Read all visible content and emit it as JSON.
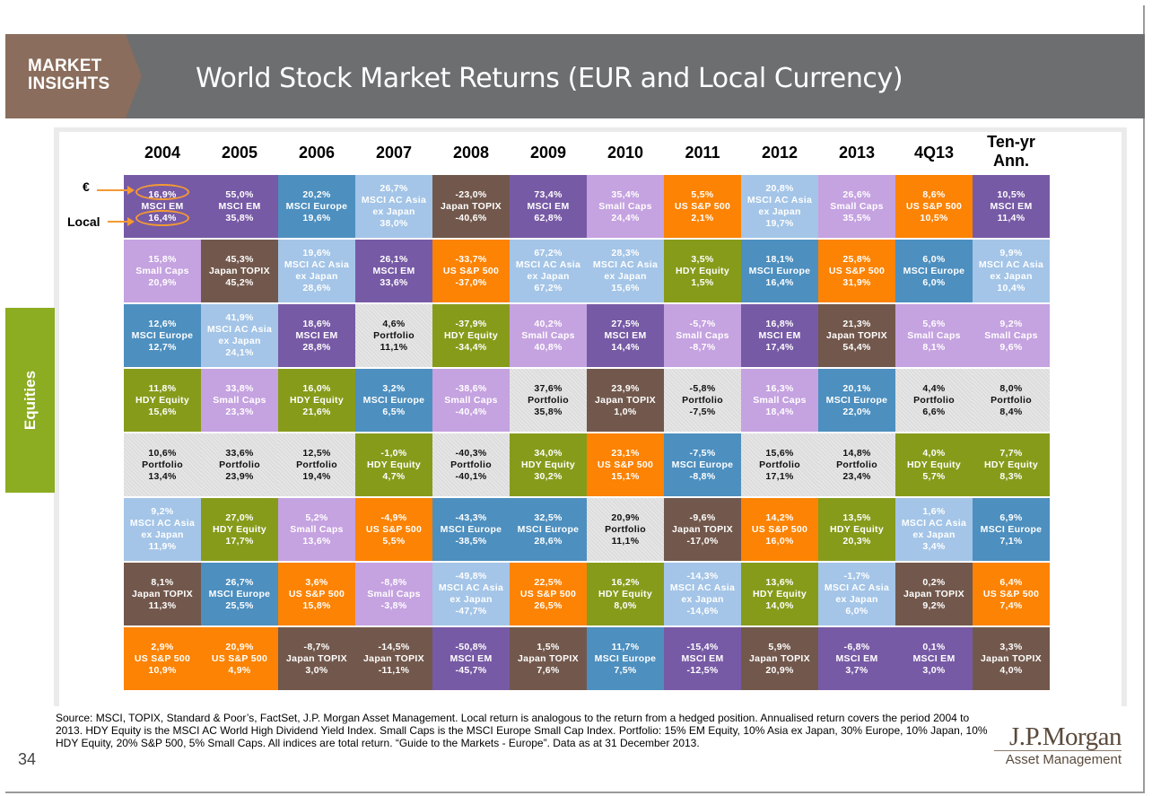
{
  "header": {
    "badge_line1": "MARKET",
    "badge_line2": "INSIGHTS",
    "title": "World Stock Market Returns (EUR and Local Currency)"
  },
  "side_tab": "Equities",
  "legend": {
    "euro": "€",
    "local": "Local"
  },
  "colors": {
    "purple": "#775aa5",
    "lavender": "#c5a2e0",
    "blue": "#4d8fbf",
    "lightblue": "#a4c5e7",
    "brown": "#72584c",
    "orange": "#fc8303",
    "olive": "#879b1b",
    "grey": "#dddddd",
    "header": "#6d6e70",
    "equities": "#8cac22",
    "legend_ring": "#f39a33"
  },
  "chart_data": {
    "type": "table",
    "columns": [
      "2004",
      "2005",
      "2006",
      "2007",
      "2008",
      "2009",
      "2010",
      "2011",
      "2012",
      "2013",
      "4Q13",
      "Ten-yr Ann."
    ],
    "rows": [
      [
        {
          "eur": "16,9%",
          "name": "MSCI EM",
          "local": "16,4%",
          "color": "purple"
        },
        {
          "eur": "55,0%",
          "name": "MSCI EM",
          "local": "35,8%",
          "color": "purple"
        },
        {
          "eur": "20,2%",
          "name": "MSCI Europe",
          "local": "19,6%",
          "color": "blue"
        },
        {
          "eur": "26,7%",
          "name": "MSCI AC Asia ex Japan",
          "local": "38,0%",
          "color": "lightblue"
        },
        {
          "eur": "-23,0%",
          "name": "Japan TOPIX",
          "local": "-40,6%",
          "color": "brown"
        },
        {
          "eur": "73,4%",
          "name": "MSCI EM",
          "local": "62,8%",
          "color": "purple"
        },
        {
          "eur": "35,4%",
          "name": "Small Caps",
          "local": "24,4%",
          "color": "lavender"
        },
        {
          "eur": "5,5%",
          "name": "US S&P 500",
          "local": "2,1%",
          "color": "orange"
        },
        {
          "eur": "20,8%",
          "name": "MSCI AC Asia ex Japan",
          "local": "19,7%",
          "color": "lightblue"
        },
        {
          "eur": "26,6%",
          "name": "Small Caps",
          "local": "35,5%",
          "color": "lavender"
        },
        {
          "eur": "8,6%",
          "name": "US S&P 500",
          "local": "10,5%",
          "color": "orange"
        },
        {
          "eur": "10,5%",
          "name": "MSCI EM",
          "local": "11,4%",
          "color": "purple"
        }
      ],
      [
        {
          "eur": "15,8%",
          "name": "Small Caps",
          "local": "20,9%",
          "color": "lavender"
        },
        {
          "eur": "45,3%",
          "name": "Japan TOPIX",
          "local": "45,2%",
          "color": "brown"
        },
        {
          "eur": "19,6%",
          "name": "MSCI AC Asia ex Japan",
          "local": "28,6%",
          "color": "lightblue"
        },
        {
          "eur": "26,1%",
          "name": "MSCI EM",
          "local": "33,6%",
          "color": "purple"
        },
        {
          "eur": "-33,7%",
          "name": "US S&P 500",
          "local": "-37,0%",
          "color": "orange"
        },
        {
          "eur": "67,2%",
          "name": "MSCI AC Asia ex Japan",
          "local": "67,2%",
          "color": "lightblue"
        },
        {
          "eur": "28,3%",
          "name": "MSCI AC Asia ex Japan",
          "local": "15,6%",
          "color": "lightblue"
        },
        {
          "eur": "3,5%",
          "name": "HDY Equity",
          "local": "1,5%",
          "color": "olive"
        },
        {
          "eur": "18,1%",
          "name": "MSCI Europe",
          "local": "16,4%",
          "color": "blue"
        },
        {
          "eur": "25,8%",
          "name": "US S&P 500",
          "local": "31,9%",
          "color": "orange"
        },
        {
          "eur": "6,0%",
          "name": "MSCI Europe",
          "local": "6,0%",
          "color": "blue"
        },
        {
          "eur": "9,9%",
          "name": "MSCI AC Asia ex Japan",
          "local": "10,4%",
          "color": "lightblue"
        }
      ],
      [
        {
          "eur": "12,6%",
          "name": "MSCI Europe",
          "local": "12,7%",
          "color": "blue"
        },
        {
          "eur": "41,9%",
          "name": "MSCI AC Asia ex Japan",
          "local": "24,1%",
          "color": "lightblue"
        },
        {
          "eur": "18,6%",
          "name": "MSCI EM",
          "local": "28,8%",
          "color": "purple"
        },
        {
          "eur": "4,6%",
          "name": "Portfolio",
          "local": "11,1%",
          "color": "grey"
        },
        {
          "eur": "-37,9%",
          "name": "HDY Equity",
          "local": "-34,4%",
          "color": "olive"
        },
        {
          "eur": "40,2%",
          "name": "Small Caps",
          "local": "40,8%",
          "color": "lavender"
        },
        {
          "eur": "27,5%",
          "name": "MSCI EM",
          "local": "14,4%",
          "color": "purple"
        },
        {
          "eur": "-5,7%",
          "name": "Small Caps",
          "local": "-8,7%",
          "color": "lavender"
        },
        {
          "eur": "16,8%",
          "name": "MSCI EM",
          "local": "17,4%",
          "color": "purple"
        },
        {
          "eur": "21,3%",
          "name": "Japan TOPIX",
          "local": "54,4%",
          "color": "brown"
        },
        {
          "eur": "5,6%",
          "name": "Small Caps",
          "local": "8,1%",
          "color": "lavender"
        },
        {
          "eur": "9,2%",
          "name": "Small Caps",
          "local": "9,6%",
          "color": "lavender"
        }
      ],
      [
        {
          "eur": "11,8%",
          "name": "HDY Equity",
          "local": "15,6%",
          "color": "olive"
        },
        {
          "eur": "33,8%",
          "name": "Small Caps",
          "local": "23,3%",
          "color": "lavender"
        },
        {
          "eur": "16,0%",
          "name": "HDY Equity",
          "local": "21,6%",
          "color": "olive"
        },
        {
          "eur": "3,2%",
          "name": "MSCI Europe",
          "local": "6,5%",
          "color": "blue"
        },
        {
          "eur": "-38,6%",
          "name": "Small Caps",
          "local": "-40,4%",
          "color": "lavender"
        },
        {
          "eur": "37,6%",
          "name": "Portfolio",
          "local": "35,8%",
          "color": "grey"
        },
        {
          "eur": "23,9%",
          "name": "Japan TOPIX",
          "local": "1,0%",
          "color": "brown"
        },
        {
          "eur": "-5,8%",
          "name": "Portfolio",
          "local": "-7,5%",
          "color": "grey"
        },
        {
          "eur": "16,3%",
          "name": "Small Caps",
          "local": "18,4%",
          "color": "lavender"
        },
        {
          "eur": "20,1%",
          "name": "MSCI Europe",
          "local": "22,0%",
          "color": "blue"
        },
        {
          "eur": "4,4%",
          "name": "Portfolio",
          "local": "6,6%",
          "color": "grey"
        },
        {
          "eur": "8,0%",
          "name": "Portfolio",
          "local": "8,4%",
          "color": "grey"
        }
      ],
      [
        {
          "eur": "10,6%",
          "name": "Portfolio",
          "local": "13,4%",
          "color": "grey"
        },
        {
          "eur": "33,6%",
          "name": "Portfolio",
          "local": "23,9%",
          "color": "grey"
        },
        {
          "eur": "12,5%",
          "name": "Portfolio",
          "local": "19,4%",
          "color": "grey"
        },
        {
          "eur": "-1,0%",
          "name": "HDY Equity",
          "local": "4,7%",
          "color": "olive"
        },
        {
          "eur": "-40,3%",
          "name": "Portfolio",
          "local": "-40,1%",
          "color": "grey"
        },
        {
          "eur": "34,0%",
          "name": "HDY Equity",
          "local": "30,2%",
          "color": "olive"
        },
        {
          "eur": "23,1%",
          "name": "US S&P 500",
          "local": "15,1%",
          "color": "orange"
        },
        {
          "eur": "-7,5%",
          "name": "MSCI Europe",
          "local": "-8,8%",
          "color": "blue"
        },
        {
          "eur": "15,6%",
          "name": "Portfolio",
          "local": "17,1%",
          "color": "grey"
        },
        {
          "eur": "14,8%",
          "name": "Portfolio",
          "local": "23,4%",
          "color": "grey"
        },
        {
          "eur": "4,0%",
          "name": "HDY Equity",
          "local": "5,7%",
          "color": "olive"
        },
        {
          "eur": "7,7%",
          "name": "HDY Equity",
          "local": "8,3%",
          "color": "olive"
        }
      ],
      [
        {
          "eur": "9,2%",
          "name": "MSCI AC Asia ex Japan",
          "local": "11,9%",
          "color": "lightblue"
        },
        {
          "eur": "27,0%",
          "name": "HDY Equity",
          "local": "17,7%",
          "color": "olive"
        },
        {
          "eur": "5,2%",
          "name": "Small Caps",
          "local": "13,6%",
          "color": "lavender"
        },
        {
          "eur": "-4,9%",
          "name": "US S&P 500",
          "local": "5,5%",
          "color": "orange"
        },
        {
          "eur": "-43,3%",
          "name": "MSCI Europe",
          "local": "-38,5%",
          "color": "blue"
        },
        {
          "eur": "32,5%",
          "name": "MSCI Europe",
          "local": "28,6%",
          "color": "blue"
        },
        {
          "eur": "20,9%",
          "name": "Portfolio",
          "local": "11,1%",
          "color": "grey"
        },
        {
          "eur": "-9,6%",
          "name": "Japan TOPIX",
          "local": "-17,0%",
          "color": "brown"
        },
        {
          "eur": "14,2%",
          "name": "US S&P 500",
          "local": "16,0%",
          "color": "orange"
        },
        {
          "eur": "13,5%",
          "name": "HDY Equity",
          "local": "20,3%",
          "color": "olive"
        },
        {
          "eur": "1,6%",
          "name": "MSCI AC Asia ex Japan",
          "local": "3,4%",
          "color": "lightblue"
        },
        {
          "eur": "6,9%",
          "name": "MSCI Europe",
          "local": "7,1%",
          "color": "blue"
        }
      ],
      [
        {
          "eur": "8,1%",
          "name": "Japan TOPIX",
          "local": "11,3%",
          "color": "brown"
        },
        {
          "eur": "26,7%",
          "name": "MSCI Europe",
          "local": "25,5%",
          "color": "blue"
        },
        {
          "eur": "3,6%",
          "name": "US S&P 500",
          "local": "15,8%",
          "color": "orange"
        },
        {
          "eur": "-8,8%",
          "name": "Small Caps",
          "local": "-3,8%",
          "color": "lavender"
        },
        {
          "eur": "-49,8%",
          "name": "MSCI AC Asia ex Japan",
          "local": "-47,7%",
          "color": "lightblue"
        },
        {
          "eur": "22,5%",
          "name": "US S&P 500",
          "local": "26,5%",
          "color": "orange"
        },
        {
          "eur": "16,2%",
          "name": "HDY Equity",
          "local": "8,0%",
          "color": "olive"
        },
        {
          "eur": "-14,3%",
          "name": "MSCI AC Asia ex Japan",
          "local": "-14,6%",
          "color": "lightblue"
        },
        {
          "eur": "13,6%",
          "name": "HDY Equity",
          "local": "14,0%",
          "color": "olive"
        },
        {
          "eur": "-1,7%",
          "name": "MSCI AC Asia ex Japan",
          "local": "6,0%",
          "color": "lightblue"
        },
        {
          "eur": "0,2%",
          "name": "Japan TOPIX",
          "local": "9,2%",
          "color": "brown"
        },
        {
          "eur": "6,4%",
          "name": "US S&P 500",
          "local": "7,4%",
          "color": "orange"
        }
      ],
      [
        {
          "eur": "2,9%",
          "name": "US S&P 500",
          "local": "10,9%",
          "color": "orange"
        },
        {
          "eur": "20,9%",
          "name": "US S&P 500",
          "local": "4,9%",
          "color": "orange"
        },
        {
          "eur": "-8,7%",
          "name": "Japan TOPIX",
          "local": "3,0%",
          "color": "brown"
        },
        {
          "eur": "-14,5%",
          "name": "Japan TOPIX",
          "local": "-11,1%",
          "color": "brown"
        },
        {
          "eur": "-50,8%",
          "name": "MSCI EM",
          "local": "-45,7%",
          "color": "purple"
        },
        {
          "eur": "1,5%",
          "name": "Japan TOPIX",
          "local": "7,6%",
          "color": "brown"
        },
        {
          "eur": "11,7%",
          "name": "MSCI Europe",
          "local": "7,5%",
          "color": "blue"
        },
        {
          "eur": "-15,4%",
          "name": "MSCI EM",
          "local": "-12,5%",
          "color": "purple"
        },
        {
          "eur": "5,9%",
          "name": "Japan TOPIX",
          "local": "20,9%",
          "color": "brown"
        },
        {
          "eur": "-6,8%",
          "name": "MSCI EM",
          "local": "3,7%",
          "color": "purple"
        },
        {
          "eur": "0,1%",
          "name": "MSCI EM",
          "local": "3,0%",
          "color": "purple"
        },
        {
          "eur": "3,3%",
          "name": "Japan TOPIX",
          "local": "4,0%",
          "color": "brown"
        }
      ]
    ]
  },
  "footer": {
    "source": "Source: MSCI, TOPIX, Standard & Poor’s, FactSet, J.P. Morgan Asset Management. Local return is analogous to the return from a hedged position. Annualised return covers the period 2004 to 2013. HDY Equity is the MSCI AC World High Dividend Yield Index. Small Caps is the MSCI Europe Small Cap Index. Portfolio: 15% EM Equity, 10% Asia ex Japan, 30% Europe, 10% Japan, 10% HDY Equity, 20% S&P 500, 5% Small Caps. All indices are total return. “Guide to the Markets - Europe”. Data as at 31 December 2013.",
    "page_number": "34",
    "logo_name": "J.P.Morgan",
    "logo_sub": "Asset Management"
  }
}
